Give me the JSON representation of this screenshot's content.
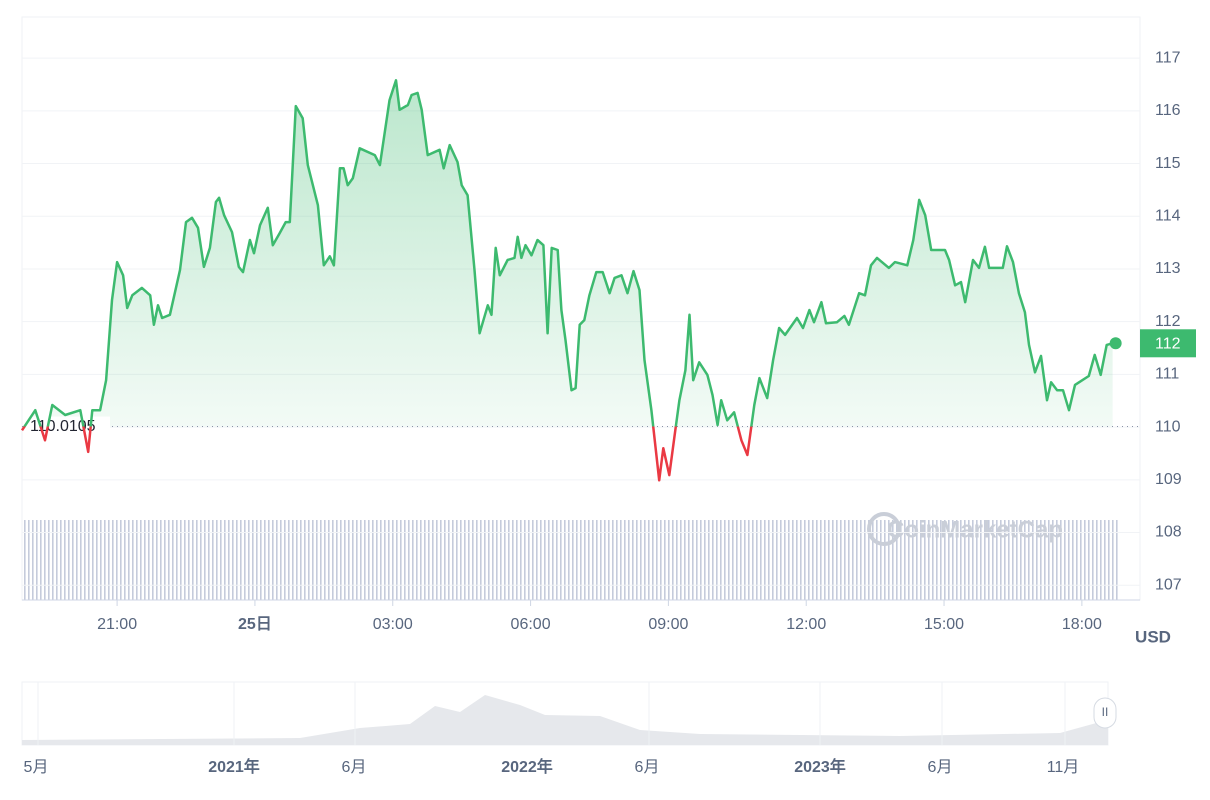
{
  "chart_data": {
    "type": "line",
    "x": [
      18.93,
      19.22,
      19.43,
      19.59,
      19.87,
      20.2,
      20.37,
      20.46,
      20.63,
      20.76,
      20.89,
      21.0,
      21.13,
      21.22,
      21.33,
      21.54,
      21.72,
      21.8,
      21.89,
      21.98,
      22.15,
      22.37,
      22.5,
      22.63,
      22.76,
      22.89,
      23.02,
      23.15,
      23.22,
      23.33,
      23.5,
      23.65,
      23.74,
      23.89,
      23.98,
      24.11,
      24.28,
      24.39,
      24.54,
      24.67,
      24.76,
      24.89,
      25.04,
      25.15,
      25.37,
      25.5,
      25.63,
      25.72,
      25.85,
      25.93,
      26.02,
      26.13,
      26.28,
      26.61,
      26.72,
      26.93,
      27.07,
      27.15,
      27.33,
      27.41,
      27.54,
      27.63,
      27.76,
      28.02,
      28.11,
      28.24,
      28.41,
      28.5,
      28.63,
      28.78,
      28.89,
      29.07,
      29.15,
      29.24,
      29.33,
      29.5,
      29.65,
      29.72,
      29.8,
      29.89,
      30.02,
      30.15,
      30.28,
      30.37,
      30.46,
      30.59,
      30.67,
      30.76,
      30.89,
      30.98,
      31.07,
      31.17,
      31.28,
      31.43,
      31.57,
      31.72,
      31.83,
      31.98,
      32.11,
      32.24,
      32.37,
      32.48,
      32.63,
      32.8,
      32.89,
      33.02,
      33.15,
      33.24,
      33.37,
      33.46,
      33.54,
      33.67,
      33.85,
      33.96,
      34.07,
      34.15,
      34.28,
      34.43,
      34.59,
      34.72,
      34.87,
      34.98,
      35.15,
      35.28,
      35.41,
      35.54,
      35.8,
      35.93,
      36.07,
      36.17,
      36.33,
      36.43,
      36.67,
      36.83,
      36.93,
      37.15,
      37.28,
      37.41,
      37.54,
      37.8,
      37.93,
      38.2,
      38.33,
      38.46,
      38.59,
      38.72,
      39.02,
      39.11,
      39.24,
      39.37,
      39.46,
      39.63,
      39.76,
      39.89,
      39.98,
      40.28,
      40.37,
      40.5,
      40.63,
      40.76,
      40.85,
      40.98,
      41.11,
      41.24,
      41.33,
      41.46,
      41.59,
      41.72,
      41.85,
      42.15,
      42.28,
      42.41,
      42.54,
      42.67
    ],
    "series": [
      {
        "color": "#3dba6f",
        "values": [
          109.94,
          110.32,
          109.75,
          110.42,
          110.23,
          110.32,
          109.53,
          110.32,
          110.32,
          110.89,
          112.41,
          113.13,
          112.88,
          112.26,
          112.5,
          112.64,
          112.5,
          111.94,
          112.31,
          112.07,
          112.13,
          112.98,
          113.89,
          113.97,
          113.78,
          113.04,
          113.4,
          114.27,
          114.35,
          114.02,
          113.7,
          113.04,
          112.94,
          113.55,
          113.3,
          113.83,
          114.16,
          113.45,
          113.68,
          113.89,
          113.89,
          116.09,
          115.86,
          114.97,
          114.21,
          113.07,
          113.24,
          113.07,
          114.91,
          114.91,
          114.59,
          114.72,
          115.29,
          115.16,
          114.97,
          116.2,
          116.58,
          116.02,
          116.11,
          116.3,
          116.34,
          116.02,
          115.16,
          115.26,
          114.91,
          115.35,
          115.03,
          114.59,
          114.4,
          112.98,
          111.78,
          112.31,
          112.13,
          113.4,
          112.88,
          113.17,
          113.21,
          113.61,
          113.21,
          113.45,
          113.26,
          113.55,
          113.45,
          111.78,
          113.4,
          113.36,
          112.22,
          111.65,
          110.7,
          110.74,
          111.94,
          112.03,
          112.5,
          112.94,
          112.94,
          112.54,
          112.83,
          112.88,
          112.54,
          112.96,
          112.6,
          111.27,
          110.32,
          108.99,
          109.6,
          109.09,
          109.94,
          110.51,
          111.08,
          112.13,
          110.89,
          111.23,
          110.99,
          110.61,
          110.04,
          110.51,
          110.13,
          110.28,
          109.75,
          109.47,
          110.42,
          110.93,
          110.55,
          111.27,
          111.88,
          111.75,
          112.07,
          111.88,
          112.22,
          111.99,
          112.37,
          111.97,
          111.99,
          112.11,
          111.94,
          112.54,
          112.5,
          113.07,
          113.21,
          113.02,
          113.13,
          113.07,
          113.55,
          114.31,
          114.02,
          113.36,
          113.36,
          113.17,
          112.69,
          112.75,
          112.37,
          113.17,
          113.02,
          113.42,
          113.02,
          113.02,
          113.43,
          113.13,
          112.54,
          112.18,
          111.56,
          111.04,
          111.35,
          110.51,
          110.85,
          110.7,
          110.7,
          110.32,
          110.8,
          110.97,
          111.37,
          110.99,
          111.56,
          111.59
        ]
      }
    ],
    "below_color": "#ea3943",
    "baseline": 110.0105,
    "price_tag": 112,
    "xlim": [
      18.93,
      42.83
    ],
    "xticks": [
      {
        "value": 21,
        "label": "21:00"
      },
      {
        "value": 24,
        "label": "25日"
      },
      {
        "value": 27,
        "label": "03:00"
      },
      {
        "value": 30,
        "label": "06:00"
      },
      {
        "value": 33,
        "label": "09:00"
      },
      {
        "value": 36,
        "label": "12:00"
      },
      {
        "value": 39,
        "label": "15:00"
      },
      {
        "value": 42,
        "label": "18:00"
      }
    ],
    "ylim": [
      106.72,
      117.78
    ],
    "yticks": [
      107,
      108,
      109,
      110,
      111,
      112,
      113,
      114,
      115,
      116,
      117
    ],
    "grid": true,
    "y_unit": "USD",
    "watermark": "CoinMarketCap"
  },
  "navigator": {
    "labels": [
      "5月",
      "2021年",
      "6月",
      "2022年",
      "6月",
      "2023年",
      "6月",
      "11月"
    ]
  }
}
